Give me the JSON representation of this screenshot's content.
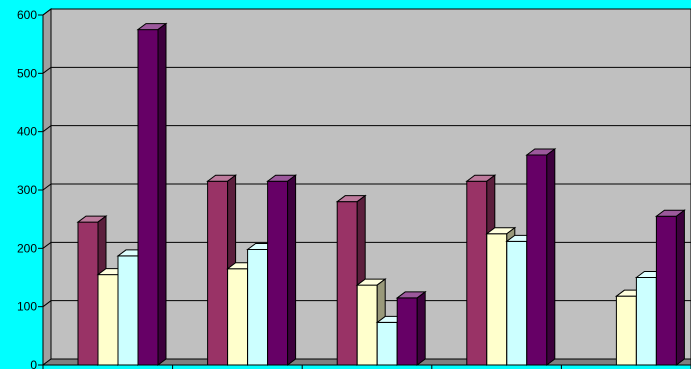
{
  "chart_data": {
    "type": "bar",
    "style": "3d-clustered-column",
    "title": "",
    "xlabel": "",
    "ylabel": "",
    "ylim": [
      0,
      600
    ],
    "yticks": [
      "0",
      "100",
      "200",
      "300",
      "400",
      "500",
      "600"
    ],
    "grid": true,
    "categories": [
      "",
      "",
      "",
      "",
      ""
    ],
    "series": [
      {
        "color": "#993366",
        "values": [
          245,
          315,
          280,
          315,
          null
        ]
      },
      {
        "color": "#ffffcc",
        "values": [
          155,
          165,
          137,
          225,
          118
        ]
      },
      {
        "color": "#ccffff",
        "values": [
          187,
          198,
          73,
          212,
          150
        ]
      },
      {
        "color": "#660066",
        "values": [
          575,
          315,
          115,
          360,
          255
        ]
      }
    ]
  },
  "colors": {
    "background": "#00ffff",
    "plot_wall": "#c0c0c0",
    "gridline": "#000000"
  }
}
